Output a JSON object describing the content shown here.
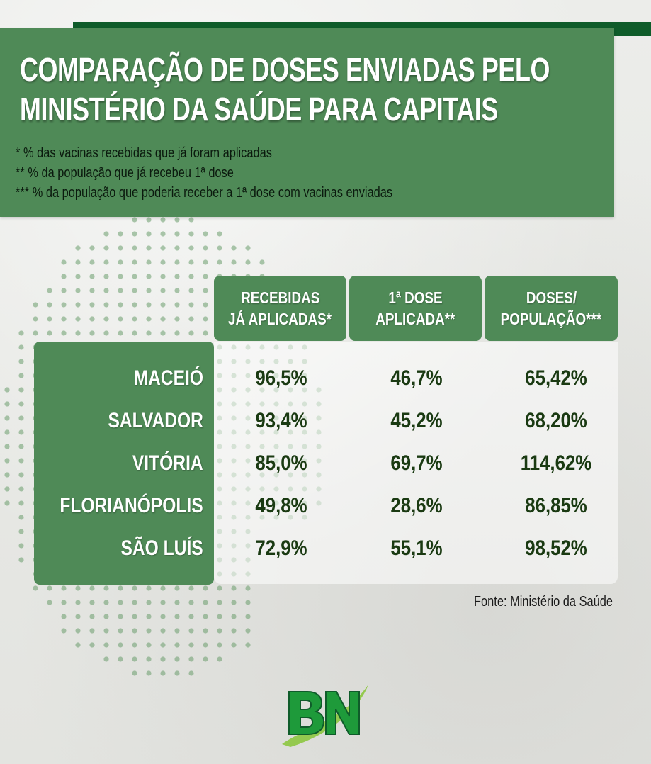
{
  "title": {
    "line1": "COMPARAÇÃO DE DOSES ENVIADAS PELO",
    "line2": "MINISTÉRIO DA SAÚDE PARA CAPITAIS"
  },
  "notes": [
    "* % das vacinas recebidas que já foram aplicadas",
    "** % da população que já recebeu 1ª dose",
    "*** % da população que poderia receber a 1ª dose com vacinas enviadas"
  ],
  "columns": [
    {
      "line1": "RECEBIDAS",
      "line2": "JÁ APLICADAS*"
    },
    {
      "line1": "1ª DOSE",
      "line2": "APLICADA**"
    },
    {
      "line1": "DOSES/",
      "line2": "POPULAÇÃO***"
    }
  ],
  "rows": [
    {
      "city": "MACEIÓ",
      "values": [
        "96,5%",
        "46,7%",
        "65,42%"
      ]
    },
    {
      "city": "SALVADOR",
      "values": [
        "93,4%",
        "45,2%",
        "68,20%"
      ]
    },
    {
      "city": "VITÓRIA",
      "values": [
        "85,0%",
        "69,7%",
        "114,62%"
      ]
    },
    {
      "city": "FLORIANÓPOLIS",
      "values": [
        "49,8%",
        "28,6%",
        "86,85%"
      ]
    },
    {
      "city": "SÃO LUÍS",
      "values": [
        "72,9%",
        "55,1%",
        "98,52%"
      ]
    }
  ],
  "source": "Fonte: Ministério da Saúde",
  "logo": {
    "text": "BN",
    "icon": "bn-logo-icon"
  },
  "colors": {
    "panel_green": "#4f8a57",
    "dark_green": "#0f5c2a",
    "value_text": "#1a3a12",
    "logo_green": "#1e9a3a",
    "logo_swoosh": "#8cc63f"
  }
}
